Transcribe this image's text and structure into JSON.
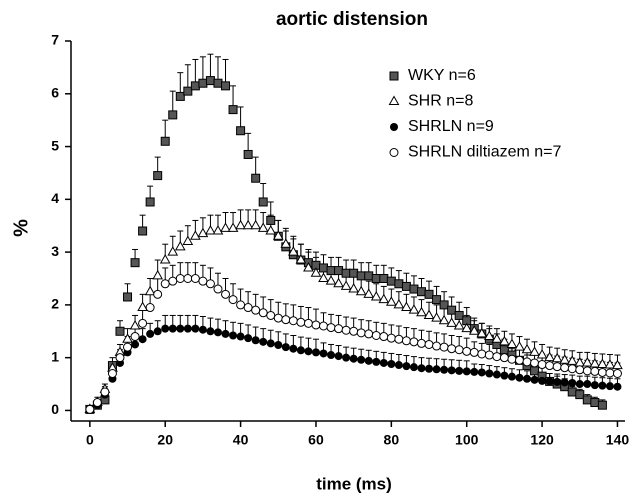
{
  "chart_data": {
    "type": "scatter",
    "title": "aortic distension",
    "xlabel": "time (ms)",
    "ylabel": "%",
    "x": [
      0,
      2,
      4,
      6,
      8,
      10,
      12,
      14,
      16,
      18,
      20,
      22,
      24,
      26,
      28,
      30,
      32,
      34,
      36,
      38,
      40,
      42,
      44,
      46,
      48,
      50,
      52,
      54,
      56,
      58,
      60,
      62,
      64,
      66,
      68,
      70,
      72,
      74,
      76,
      78,
      80,
      82,
      84,
      86,
      88,
      90,
      92,
      94,
      96,
      98,
      100,
      102,
      104,
      106,
      108,
      110,
      112,
      114,
      116,
      118,
      120,
      122,
      124,
      126,
      128,
      130,
      132,
      134,
      136,
      138,
      140
    ],
    "xlim": [
      -5,
      142
    ],
    "ylim": [
      -0.2,
      7
    ],
    "xticks": [
      0,
      20,
      40,
      60,
      80,
      100,
      120,
      140
    ],
    "yticks": [
      0,
      1,
      2,
      3,
      4,
      5,
      6,
      7
    ],
    "series": [
      {
        "name": "WKY n=6",
        "marker": "square",
        "color": "#555555",
        "values": [
          0.02,
          0.1,
          0.2,
          0.85,
          1.5,
          2.15,
          2.8,
          3.4,
          3.95,
          4.45,
          5.1,
          5.6,
          5.95,
          6.05,
          6.15,
          6.2,
          6.25,
          6.2,
          6.15,
          5.7,
          5.3,
          4.85,
          4.4,
          3.95,
          3.6,
          3.3,
          3.1,
          2.95,
          2.85,
          2.8,
          2.75,
          2.7,
          2.65,
          2.65,
          2.6,
          2.6,
          2.55,
          2.55,
          2.5,
          2.5,
          2.45,
          2.4,
          2.35,
          2.3,
          2.25,
          2.2,
          2.1,
          2.0,
          1.9,
          1.8,
          1.7,
          1.55,
          1.45,
          1.35,
          1.25,
          1.15,
          1.05,
          0.95,
          0.85,
          0.75,
          0.65,
          0.55,
          0.5,
          0.45,
          0.35,
          0.3,
          0.2,
          0.15,
          0.1,
          null,
          null
        ],
        "errors": [
          0.05,
          0.1,
          0.1,
          0.15,
          0.2,
          0.25,
          0.25,
          0.3,
          0.3,
          0.35,
          0.4,
          0.45,
          0.45,
          0.5,
          0.5,
          0.5,
          0.5,
          0.5,
          0.5,
          0.45,
          0.45,
          0.4,
          0.4,
          0.35,
          0.35,
          0.3,
          0.3,
          0.3,
          0.3,
          0.25,
          0.25,
          0.25,
          0.25,
          0.25,
          0.25,
          0.25,
          0.25,
          0.25,
          0.25,
          0.25,
          0.25,
          0.25,
          0.25,
          0.25,
          0.25,
          0.25,
          0.25,
          0.25,
          0.25,
          0.25,
          0.25,
          0.2,
          0.2,
          0.2,
          0.2,
          0.2,
          0.2,
          0.2,
          0.2,
          0.2,
          0.2,
          0.15,
          0.15,
          0.15,
          0.1,
          0.1,
          0.1,
          0.1,
          0.1,
          null,
          null
        ]
      },
      {
        "name": "SHR n=8",
        "marker": "triangle-open",
        "color": "#000000",
        "values": [
          0.02,
          0.15,
          0.4,
          0.8,
          1.1,
          1.35,
          1.6,
          1.95,
          2.25,
          2.55,
          2.85,
          3.0,
          3.1,
          3.2,
          3.3,
          3.35,
          3.4,
          3.4,
          3.45,
          3.45,
          3.5,
          3.5,
          3.5,
          3.45,
          3.4,
          3.3,
          3.15,
          3.0,
          2.85,
          2.7,
          2.6,
          2.5,
          2.45,
          2.4,
          2.35,
          2.3,
          2.25,
          2.2,
          2.15,
          2.1,
          2.05,
          2.0,
          1.95,
          1.9,
          1.85,
          1.8,
          1.75,
          1.7,
          1.65,
          1.6,
          1.55,
          1.5,
          1.45,
          1.4,
          1.35,
          1.3,
          1.25,
          1.2,
          1.15,
          1.1,
          1.05,
          1.0,
          0.98,
          0.95,
          0.93,
          0.9,
          0.9,
          0.88,
          0.87,
          0.86,
          0.85
        ],
        "errors": [
          0.05,
          0.1,
          0.1,
          0.1,
          0.15,
          0.2,
          0.2,
          0.25,
          0.25,
          0.3,
          0.3,
          0.3,
          0.3,
          0.3,
          0.3,
          0.3,
          0.3,
          0.3,
          0.3,
          0.3,
          0.3,
          0.3,
          0.3,
          0.3,
          0.3,
          0.3,
          0.3,
          0.3,
          0.3,
          0.3,
          0.3,
          0.25,
          0.25,
          0.25,
          0.25,
          0.25,
          0.25,
          0.25,
          0.25,
          0.25,
          0.25,
          0.25,
          0.25,
          0.25,
          0.25,
          0.25,
          0.25,
          0.25,
          0.25,
          0.25,
          0.25,
          0.2,
          0.2,
          0.2,
          0.2,
          0.2,
          0.2,
          0.2,
          0.2,
          0.2,
          0.2,
          0.2,
          0.2,
          0.2,
          0.2,
          0.2,
          0.2,
          0.2,
          0.2,
          0.2,
          0.2
        ]
      },
      {
        "name": "SHRLN n=9",
        "marker": "circle-filled",
        "color": "#000000",
        "values": [
          0.02,
          0.1,
          0.3,
          0.6,
          0.9,
          1.1,
          1.25,
          1.35,
          1.45,
          1.5,
          1.55,
          1.55,
          1.55,
          1.55,
          1.55,
          1.53,
          1.5,
          1.48,
          1.45,
          1.42,
          1.4,
          1.37,
          1.33,
          1.3,
          1.27,
          1.24,
          1.2,
          1.17,
          1.14,
          1.12,
          1.1,
          1.08,
          1.05,
          1.03,
          1.0,
          0.98,
          0.96,
          0.94,
          0.92,
          0.9,
          0.88,
          0.86,
          0.84,
          0.82,
          0.8,
          0.79,
          0.78,
          0.77,
          0.76,
          0.75,
          0.74,
          0.73,
          0.72,
          0.7,
          0.68,
          0.66,
          0.64,
          0.62,
          0.6,
          0.58,
          0.56,
          0.55,
          0.54,
          0.53,
          0.52,
          0.5,
          0.5,
          0.48,
          0.47,
          0.46,
          0.45
        ],
        "errors": [
          0.03,
          0.05,
          0.1,
          0.1,
          0.15,
          0.15,
          0.2,
          0.2,
          0.2,
          0.2,
          0.25,
          0.25,
          0.25,
          0.25,
          0.25,
          0.25,
          0.25,
          0.25,
          0.25,
          0.25,
          0.25,
          0.25,
          0.25,
          0.25,
          0.25,
          0.25,
          0.25,
          0.25,
          0.25,
          0.25,
          0.25,
          0.2,
          0.2,
          0.2,
          0.2,
          0.2,
          0.2,
          0.2,
          0.2,
          0.2,
          0.2,
          0.2,
          0.2,
          0.2,
          0.2,
          0.2,
          0.2,
          0.2,
          0.2,
          0.2,
          0.2,
          0.15,
          0.15,
          0.15,
          0.15,
          0.15,
          0.15,
          0.15,
          0.15,
          0.15,
          0.15,
          0.15,
          0.15,
          0.15,
          0.15,
          0.15,
          0.15,
          0.15,
          0.15,
          0.15,
          0.15
        ]
      },
      {
        "name": "SHRLN diltiazem n=7",
        "marker": "circle-open",
        "color": "#000000",
        "values": [
          0.02,
          0.15,
          0.35,
          0.7,
          1.0,
          1.2,
          1.4,
          1.65,
          1.95,
          2.2,
          2.4,
          2.45,
          2.5,
          2.5,
          2.5,
          2.45,
          2.4,
          2.3,
          2.2,
          2.1,
          2.0,
          1.95,
          1.9,
          1.85,
          1.8,
          1.75,
          1.72,
          1.7,
          1.67,
          1.65,
          1.62,
          1.6,
          1.57,
          1.55,
          1.52,
          1.5,
          1.47,
          1.45,
          1.42,
          1.4,
          1.37,
          1.35,
          1.32,
          1.3,
          1.27,
          1.25,
          1.22,
          1.2,
          1.17,
          1.15,
          1.12,
          1.1,
          1.07,
          1.05,
          1.02,
          1.0,
          0.97,
          0.95,
          0.92,
          0.9,
          0.87,
          0.85,
          0.83,
          0.81,
          0.79,
          0.77,
          0.75,
          0.74,
          0.72,
          0.71,
          0.7
        ],
        "errors": [
          0.03,
          0.05,
          0.1,
          0.1,
          0.15,
          0.2,
          0.2,
          0.25,
          0.25,
          0.3,
          0.3,
          0.3,
          0.3,
          0.3,
          0.3,
          0.3,
          0.3,
          0.3,
          0.3,
          0.3,
          0.3,
          0.3,
          0.3,
          0.3,
          0.3,
          0.3,
          0.3,
          0.3,
          0.3,
          0.3,
          0.3,
          0.25,
          0.25,
          0.25,
          0.25,
          0.25,
          0.25,
          0.25,
          0.25,
          0.25,
          0.25,
          0.25,
          0.25,
          0.25,
          0.25,
          0.25,
          0.25,
          0.25,
          0.25,
          0.25,
          0.25,
          0.2,
          0.2,
          0.2,
          0.2,
          0.2,
          0.2,
          0.2,
          0.2,
          0.2,
          0.2,
          0.2,
          0.2,
          0.2,
          0.2,
          0.2,
          0.2,
          0.2,
          0.2,
          0.2,
          0.2
        ]
      }
    ]
  }
}
